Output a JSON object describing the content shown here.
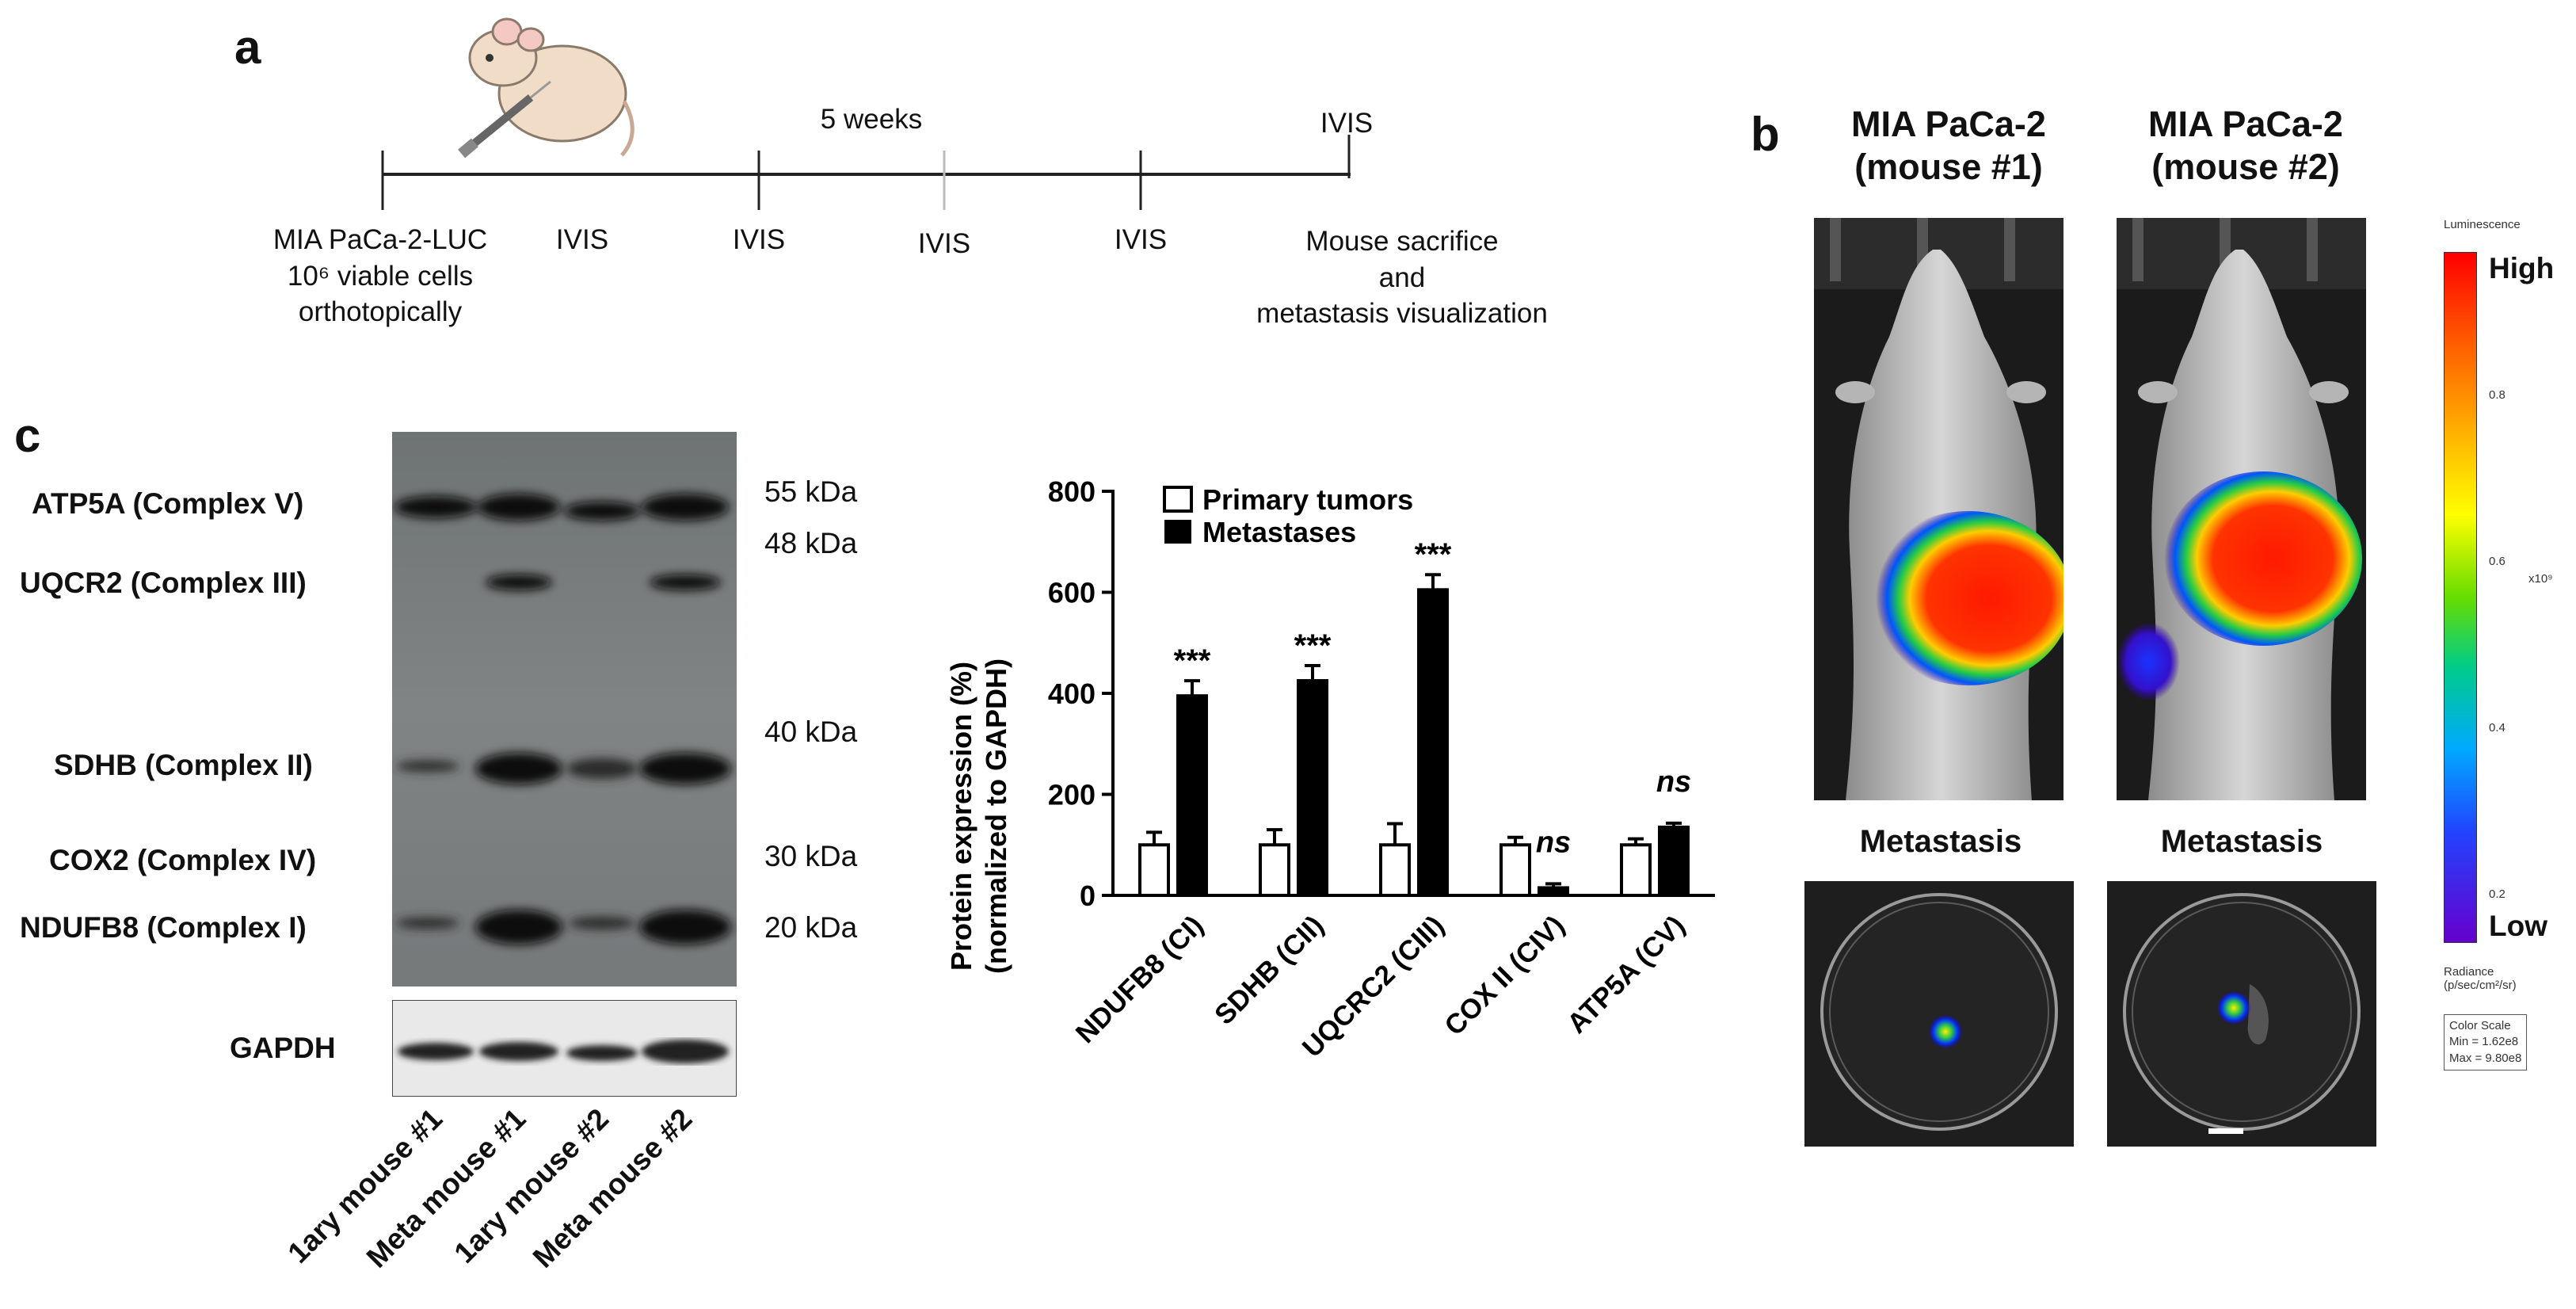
{
  "panel_a": {
    "letter": "a",
    "weeks_label": "5 weeks",
    "end_label": "IVIS",
    "events": [
      {
        "lines": [
          "MIA PaCa-2-LUC",
          "10⁶ viable cells",
          "orthotopically"
        ]
      },
      {
        "lines": [
          "IVIS"
        ]
      },
      {
        "lines": [
          "IVIS"
        ]
      },
      {
        "lines": [
          "IVIS"
        ]
      },
      {
        "lines": [
          "IVIS"
        ]
      },
      {
        "lines": [
          "Mouse sacrifice",
          "and",
          "metastasis visualization"
        ]
      }
    ]
  },
  "panel_b": {
    "letter": "b",
    "columns": [
      {
        "title_line1": "MIA PaCa-2",
        "title_line2": "(mouse #1)",
        "metastasis_label": "Metastasis"
      },
      {
        "title_line1": "MIA PaCa-2",
        "title_line2": "(mouse #2)",
        "metastasis_label": "Metastasis"
      }
    ],
    "colorbar": {
      "title": "Luminescence",
      "high": "High",
      "low": "Low",
      "ticks": [
        "0.8",
        "0.6",
        "0.4",
        "0.2"
      ],
      "multiplier": "x10⁹",
      "radiance_line1": "Radiance",
      "radiance_line2": "(p/sec/cm²/sr)",
      "scale_line1": "Color Scale",
      "scale_line2": "Min = 1.62e8",
      "scale_line3": "Max = 9.80e8"
    }
  },
  "panel_c": {
    "letter": "c",
    "blot_labels": [
      "ATP5A (Complex V)",
      "UQCR2 (Complex III)",
      "SDHB (Complex II)",
      "COX2 (Complex IV)",
      "NDUFB8 (Complex I)"
    ],
    "loading_label": "GAPDH",
    "kda_labels": [
      "55 kDa",
      "48 kDa",
      "40 kDa",
      "30 kDa",
      "20 kDa"
    ],
    "lanes": [
      "1ary mouse #1",
      "Meta mouse #1",
      "1ary mouse #2",
      "Meta mouse #2"
    ]
  },
  "chart_data": {
    "type": "bar",
    "categories": [
      "NDUFB8 (CI)",
      "SDHB (CII)",
      "UQCRC2 (CIII)",
      "COX II (CIV)",
      "ATP5A (CV)"
    ],
    "series": [
      {
        "name": "Primary tumors",
        "values": [
          100,
          100,
          100,
          100,
          100
        ],
        "errors": [
          25,
          30,
          42,
          15,
          12
        ],
        "color": "#ffffff"
      },
      {
        "name": "Metastases",
        "values": [
          395,
          425,
          605,
          15,
          135
        ],
        "errors": [
          30,
          30,
          30,
          8,
          8
        ],
        "color": "#000000"
      }
    ],
    "annotations": [
      "***",
      "***",
      "***",
      "ns",
      "ns"
    ],
    "ylabel_line1": "Protein expression (%)",
    "ylabel_line2": "(normalized to GAPDH)",
    "ylim": [
      0,
      800
    ],
    "yticks": [
      0,
      200,
      400,
      600,
      800
    ],
    "legend_position": "top-left"
  }
}
